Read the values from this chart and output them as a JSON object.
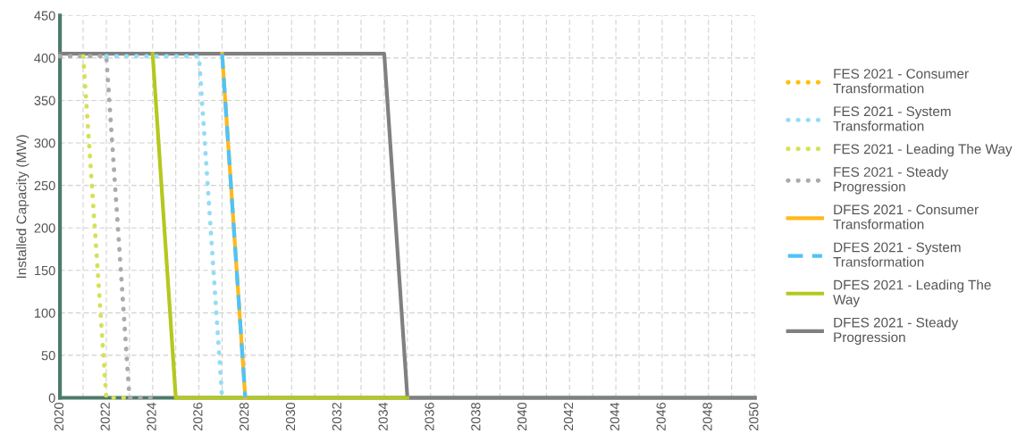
{
  "chart_data": {
    "type": "line",
    "ylabel": "Installed Capacity (MW)",
    "x": [
      2020,
      2021,
      2022,
      2023,
      2024,
      2025,
      2026,
      2027,
      2028,
      2029,
      2030,
      2031,
      2032,
      2033,
      2034,
      2035,
      2036,
      2037,
      2038,
      2039,
      2040,
      2041,
      2042,
      2043,
      2044,
      2045,
      2046,
      2047,
      2048,
      2049,
      2050
    ],
    "xlim": [
      2020,
      2050
    ],
    "xticks": [
      2020,
      {
        "value": 2021,
        "label": null
      },
      2022,
      {
        "value": 2023,
        "label": null
      },
      2024,
      {
        "value": 2025,
        "label": null
      },
      2026,
      {
        "value": 2027,
        "label": null
      },
      2028,
      {
        "value": 2029,
        "label": null
      },
      2030,
      {
        "value": 2031,
        "label": null
      },
      2032,
      {
        "value": 2033,
        "label": null
      },
      2034,
      {
        "value": 2035,
        "label": null
      },
      2036,
      {
        "value": 2037,
        "label": null
      },
      2038,
      {
        "value": 2039,
        "label": null
      },
      2040,
      {
        "value": 2041,
        "label": null
      },
      2042,
      {
        "value": 2043,
        "label": null
      },
      2044,
      {
        "value": 2045,
        "label": null
      },
      2046,
      {
        "value": 2047,
        "label": null
      },
      2048,
      {
        "value": 2049,
        "label": null
      },
      2050
    ],
    "ylim": [
      0,
      450
    ],
    "yticks": [
      0,
      50,
      100,
      150,
      200,
      250,
      300,
      350,
      400,
      450
    ],
    "grid": true,
    "legend": "right",
    "marker": "none",
    "series": [
      {
        "name": "FES 2021 - Consumer Transformation",
        "color": "#ffc000",
        "line_style": "dotted",
        "values": [
          null,
          null,
          null,
          null,
          null,
          null,
          null,
          null,
          null,
          null,
          null,
          null,
          null,
          null,
          null,
          null,
          null,
          null,
          null,
          null,
          null,
          null,
          null,
          null,
          null,
          null,
          null,
          null,
          null,
          null,
          null
        ]
      },
      {
        "name": "FES 2021 - System Transformation",
        "color": "#93dcf5",
        "line_style": "dotted",
        "values": [
          null,
          null,
          402,
          402,
          402,
          402,
          402,
          0,
          null,
          null,
          null,
          null,
          null,
          null,
          null,
          null,
          null,
          null,
          null,
          null,
          null,
          null,
          null,
          null,
          null,
          null,
          null,
          null,
          null,
          null,
          null
        ]
      },
      {
        "name": "FES 2021 - Leading The Way",
        "color": "#d4e157",
        "line_style": "dotted",
        "values": [
          null,
          402,
          0,
          0,
          null,
          null,
          null,
          null,
          null,
          null,
          null,
          null,
          null,
          null,
          null,
          null,
          null,
          null,
          null,
          null,
          null,
          null,
          null,
          null,
          null,
          null,
          null,
          null,
          null,
          null,
          null
        ]
      },
      {
        "name": "FES 2021 - Steady Progression",
        "color": "#ababab",
        "line_style": "dotted",
        "values": [
          402,
          402,
          402,
          0,
          0,
          null,
          null,
          null,
          null,
          null,
          null,
          null,
          null,
          null,
          null,
          null,
          null,
          null,
          null,
          null,
          null,
          null,
          null,
          null,
          null,
          null,
          null,
          null,
          null,
          null,
          null
        ]
      },
      {
        "name": "DFES 2021 - Consumer Transformation",
        "color": "#ffb81c",
        "line_style": "solid",
        "values": [
          null,
          null,
          null,
          null,
          null,
          null,
          null,
          405,
          0,
          null,
          null,
          null,
          null,
          null,
          null,
          null,
          null,
          null,
          null,
          null,
          null,
          null,
          null,
          null,
          null,
          null,
          null,
          null,
          null,
          null,
          null
        ]
      },
      {
        "name": "DFES 2021 - System Transformation",
        "color": "#4fc3f7",
        "line_style": "dashed",
        "values": [
          null,
          null,
          null,
          null,
          null,
          null,
          null,
          405,
          0,
          null,
          null,
          null,
          null,
          null,
          null,
          null,
          null,
          null,
          null,
          null,
          null,
          null,
          null,
          null,
          null,
          null,
          null,
          null,
          null,
          null,
          null
        ]
      },
      {
        "name": "DFES 2021 - Leading The Way",
        "color": "#b5c81e",
        "line_style": "solid",
        "values": [
          null,
          null,
          null,
          null,
          405,
          0,
          0,
          0,
          0,
          0,
          0,
          0,
          0,
          0,
          0,
          0,
          null,
          null,
          null,
          null,
          null,
          null,
          null,
          null,
          null,
          null,
          null,
          null,
          null,
          null,
          null
        ]
      },
      {
        "name": "DFES 2021 - Steady Progression",
        "color": "#808080",
        "line_style": "solid",
        "values": [
          405,
          405,
          405,
          405,
          405,
          405,
          405,
          405,
          405,
          405,
          405,
          405,
          405,
          405,
          405,
          0,
          0,
          0,
          0,
          0,
          0,
          0,
          0,
          0,
          0,
          0,
          0,
          0,
          0,
          0,
          0
        ]
      }
    ]
  }
}
